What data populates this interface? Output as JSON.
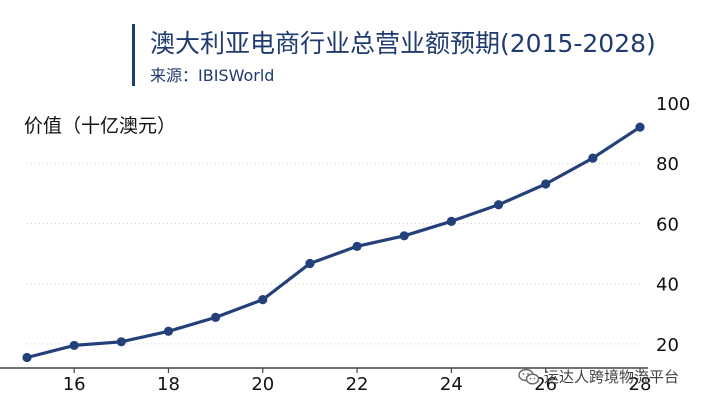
{
  "header": {
    "title": "澳大利亚电商行业总营业额预期(2015-2028)",
    "source": "来源：IBISWorld"
  },
  "watermark": {
    "text": "运达人跨境物流平台",
    "icon": "wechat-icon"
  },
  "colors": {
    "line": "#24407a",
    "title": "#1f3b6f",
    "grid": "#d0d0d0"
  },
  "chart_data": {
    "type": "line",
    "ylabel": "价值（十亿澳元）",
    "x": [
      15,
      16,
      17,
      18,
      19,
      20,
      21,
      22,
      23,
      24,
      25,
      26,
      27,
      28
    ],
    "series": [
      {
        "values": [
          15.5,
          19.5,
          20.7,
          24.2,
          28.8,
          34.7,
          46.7,
          52.4,
          55.9,
          60.7,
          66.2,
          73.1,
          81.7,
          92.0
        ]
      }
    ],
    "xticks": [
      "16",
      "18",
      "20",
      "22",
      "24",
      "26",
      "28"
    ],
    "yticks": [
      "20",
      "40",
      "60",
      "80",
      "100"
    ],
    "xlim": [
      15,
      28
    ],
    "ylim": [
      12,
      100
    ],
    "y_axis_position": "right",
    "grid": "horizontal dotted",
    "legend": "none"
  }
}
